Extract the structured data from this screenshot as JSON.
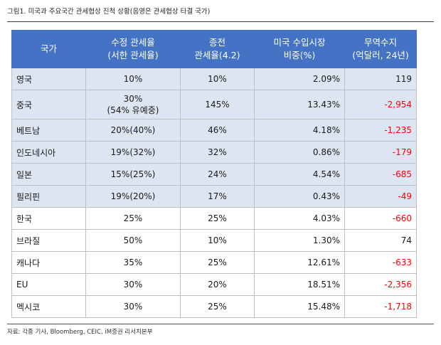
{
  "figure": {
    "title": "그림1.   미국과 주요국간 관세협상 진척 상황(음영은 관세협상 타결 국가)"
  },
  "table": {
    "headers": [
      [
        "국가"
      ],
      [
        "수정 관세율",
        "(서한 관세율)"
      ],
      [
        "종전",
        "관세율(4.2)"
      ],
      [
        "미국 수입시장",
        "비중(%)"
      ],
      [
        "무역수지",
        "(억달러, 24년)"
      ]
    ],
    "rows": [
      {
        "country": "영국",
        "revised": "10%",
        "revised_note": "",
        "previous": "10%",
        "share": "2.09%",
        "balance": "119",
        "agreed": true
      },
      {
        "country": "중국",
        "revised": "30%",
        "revised_note": "(54% 유예중)",
        "previous": "145%",
        "share": "13.43%",
        "balance": "-2,954",
        "agreed": true
      },
      {
        "country": "베트남",
        "revised": "20%(40%)",
        "revised_note": "",
        "previous": "46%",
        "share": "4.18%",
        "balance": "-1,235",
        "agreed": true
      },
      {
        "country": "인도네시아",
        "revised": "19%(32%)",
        "revised_note": "",
        "previous": "32%",
        "share": "0.86%",
        "balance": "-179",
        "agreed": true
      },
      {
        "country": "일본",
        "revised": "15%(25%)",
        "revised_note": "",
        "previous": "24%",
        "share": "4.54%",
        "balance": "-685",
        "agreed": true
      },
      {
        "country": "필리핀",
        "revised": "19%(20%)",
        "revised_note": "",
        "previous": "17%",
        "share": "0.43%",
        "balance": "-49",
        "agreed": true
      },
      {
        "country": "한국",
        "revised": "25%",
        "revised_note": "",
        "previous": "25%",
        "share": "4.03%",
        "balance": "-660",
        "agreed": false
      },
      {
        "country": "브라질",
        "revised": "50%",
        "revised_note": "",
        "previous": "10%",
        "share": "1.30%",
        "balance": "74",
        "agreed": false
      },
      {
        "country": "캐나다",
        "revised": "35%",
        "revised_note": "",
        "previous": "25%",
        "share": "12.61%",
        "balance": "-633",
        "agreed": false
      },
      {
        "country": "EU",
        "revised": "30%",
        "revised_note": "",
        "previous": "20%",
        "share": "18.51%",
        "balance": "-2,356",
        "agreed": false
      },
      {
        "country": "멕시코",
        "revised": "30%",
        "revised_note": "",
        "previous": "25%",
        "share": "15.48%",
        "balance": "-1,718",
        "agreed": false
      }
    ]
  },
  "source": "자료: 각종 기사, Bloomberg, CEIC, iM증권 리서치본부",
  "colors": {
    "header_bg": "#4472c4",
    "shaded_row_bg": "#dde5f3",
    "negative_text": "#ff0000"
  }
}
